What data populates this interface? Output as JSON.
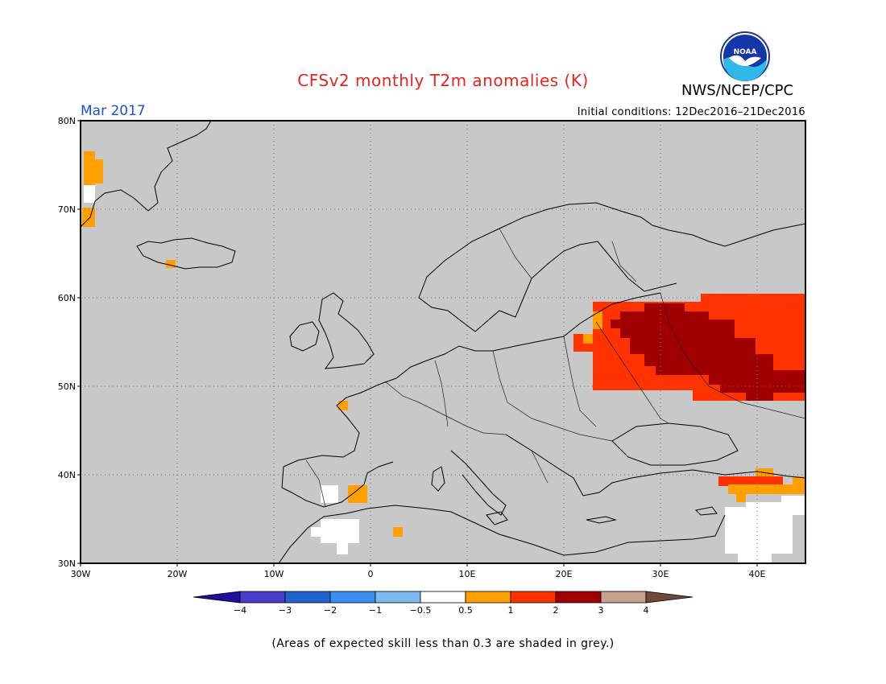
{
  "title": "CFSv2 monthly T2m anomalies (K)",
  "agency": "NWS/NCEP/CPC",
  "logo": {
    "text": "NOAA"
  },
  "forecast_month": "Mar 2017",
  "initial_conditions": "Initial conditions: 12Dec2016–21Dec2016",
  "lat_labels": [
    "80N",
    "70N",
    "60N",
    "50N",
    "40N",
    "30N"
  ],
  "lon_labels": [
    "30W",
    "20W",
    "10W",
    "0",
    "10E",
    "20E",
    "30E",
    "40E"
  ],
  "colorbar": {
    "colors": [
      "#1e0f9c",
      "#4a3ccc",
      "#1f63cf",
      "#3c8ff0",
      "#7bb9ee",
      "#ffffff",
      "#ffa000",
      "#ff3200",
      "#a00000",
      "#c8a090",
      "#70483c"
    ],
    "labels": [
      "−4",
      "−3",
      "−2",
      "−1",
      "−0.5",
      "0.5",
      "1",
      "2",
      "3",
      "4"
    ]
  },
  "skill_note": "(Areas of expected skill less than 0.3 are shaded in grey.)",
  "background_grey": "#c8c8c8"
}
